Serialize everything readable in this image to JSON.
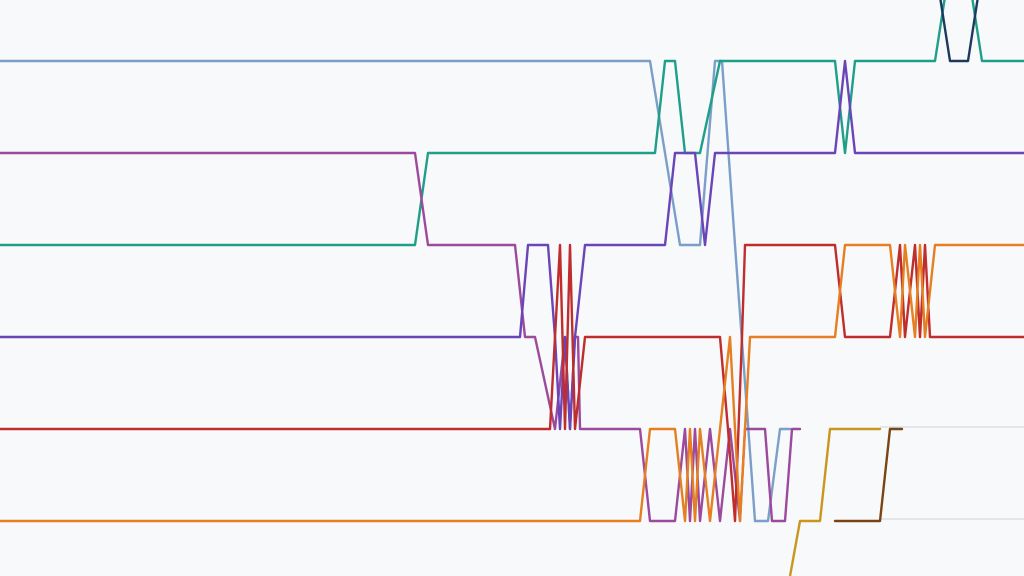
{
  "chart_data": {
    "type": "line",
    "title": "",
    "xlabel": "",
    "ylabel": "",
    "xlim": [
      0,
      1024
    ],
    "ylim": [
      0,
      6
    ],
    "y_orientation": "rank 0 at top",
    "grid": false,
    "legend": "none",
    "series": [
      {
        "color": "#7b9fc9",
        "points": [
          [
            0,
            0.7
          ],
          [
            650,
            0.7
          ],
          [
            680,
            2.7
          ],
          [
            700,
            2.7
          ],
          [
            715,
            0.7
          ],
          [
            722,
            0.7
          ],
          [
            735,
            2.7
          ],
          [
            755,
            5.7
          ],
          [
            768,
            5.7
          ],
          [
            780,
            4.7
          ],
          [
            790,
            4.7
          ]
        ]
      },
      {
        "color": "#1f9e89",
        "points": [
          [
            0,
            2.7
          ],
          [
            415,
            2.7
          ],
          [
            428,
            1.7
          ],
          [
            655,
            1.7
          ],
          [
            665,
            0.7
          ],
          [
            675,
            0.7
          ],
          [
            685,
            1.7
          ],
          [
            700,
            1.7
          ],
          [
            720,
            0.7
          ],
          [
            835,
            0.7
          ],
          [
            845,
            1.7
          ],
          [
            855,
            0.7
          ],
          [
            935,
            0.7
          ],
          [
            945,
            0
          ],
          [
            972,
            0
          ],
          [
            982,
            0.7
          ],
          [
            1024,
            0.7
          ]
        ]
      },
      {
        "color": "#9c4a9c",
        "points": [
          [
            0,
            1.7
          ],
          [
            415,
            1.7
          ],
          [
            428,
            2.7
          ],
          [
            515,
            2.7
          ],
          [
            525,
            3.7
          ],
          [
            535,
            3.7
          ],
          [
            555,
            4.7
          ],
          [
            565,
            3.7
          ],
          [
            570,
            4.7
          ],
          [
            575,
            3.7
          ],
          [
            578,
            3.7
          ],
          [
            580,
            4.7
          ],
          [
            640,
            4.7
          ],
          [
            650,
            5.7
          ],
          [
            675,
            5.7
          ],
          [
            685,
            4.7
          ],
          [
            690,
            5.7
          ],
          [
            695,
            4.7
          ],
          [
            700,
            5.7
          ],
          [
            710,
            4.7
          ],
          [
            720,
            5.7
          ],
          [
            730,
            4.7
          ],
          [
            740,
            5.7
          ],
          [
            745,
            4.7
          ],
          [
            765,
            4.7
          ],
          [
            772,
            5.7
          ],
          [
            785,
            5.7
          ],
          [
            792,
            4.7
          ],
          [
            800,
            4.7
          ]
        ]
      },
      {
        "color": "#6a45b8",
        "points": [
          [
            0,
            3.7
          ],
          [
            520,
            3.7
          ],
          [
            528,
            2.7
          ],
          [
            548,
            2.7
          ],
          [
            555,
            3.7
          ],
          [
            560,
            4.7
          ],
          [
            565,
            3.7
          ],
          [
            570,
            4.7
          ],
          [
            575,
            3.7
          ],
          [
            585,
            2.7
          ],
          [
            665,
            2.7
          ],
          [
            675,
            1.7
          ],
          [
            695,
            1.7
          ],
          [
            705,
            2.7
          ],
          [
            715,
            1.7
          ],
          [
            835,
            1.7
          ],
          [
            845,
            0.7
          ],
          [
            855,
            1.7
          ],
          [
            1024,
            1.7
          ]
        ]
      },
      {
        "color": "#c02d2d",
        "points": [
          [
            0,
            4.7
          ],
          [
            550,
            4.7
          ],
          [
            560,
            2.7
          ],
          [
            565,
            4.7
          ],
          [
            570,
            2.7
          ],
          [
            575,
            4.7
          ],
          [
            585,
            3.7
          ],
          [
            720,
            3.7
          ],
          [
            728,
            4.7
          ],
          [
            735,
            5.7
          ],
          [
            742,
            3.7
          ],
          [
            745,
            2.7
          ],
          [
            835,
            2.7
          ],
          [
            845,
            3.7
          ],
          [
            890,
            3.7
          ],
          [
            900,
            2.7
          ],
          [
            905,
            3.7
          ],
          [
            915,
            2.7
          ],
          [
            920,
            3.7
          ],
          [
            925,
            2.7
          ],
          [
            930,
            3.7
          ],
          [
            1024,
            3.7
          ]
        ]
      },
      {
        "color": "#e67e22",
        "points": [
          [
            0,
            5.7
          ],
          [
            640,
            5.7
          ],
          [
            650,
            4.7
          ],
          [
            675,
            4.7
          ],
          [
            685,
            5.7
          ],
          [
            690,
            4.7
          ],
          [
            695,
            5.7
          ],
          [
            700,
            4.7
          ],
          [
            710,
            5.7
          ],
          [
            720,
            4.7
          ],
          [
            730,
            3.7
          ],
          [
            735,
            4.7
          ],
          [
            740,
            5.7
          ],
          [
            745,
            4.7
          ],
          [
            750,
            3.7
          ],
          [
            835,
            3.7
          ],
          [
            845,
            2.7
          ],
          [
            890,
            2.7
          ],
          [
            900,
            3.7
          ],
          [
            905,
            2.7
          ],
          [
            915,
            3.7
          ],
          [
            920,
            2.7
          ],
          [
            925,
            3.7
          ],
          [
            935,
            2.7
          ],
          [
            1024,
            2.7
          ]
        ]
      },
      {
        "color": "#c9971f",
        "points": [
          [
            790,
            6.3
          ],
          [
            800,
            5.7
          ],
          [
            820,
            5.7
          ],
          [
            830,
            4.7
          ],
          [
            880,
            4.7
          ]
        ]
      },
      {
        "color": "#7a4515",
        "points": [
          [
            835,
            5.7
          ],
          [
            880,
            5.7
          ],
          [
            890,
            4.7
          ],
          [
            902,
            4.7
          ]
        ]
      },
      {
        "color": "#1c3a60",
        "points": [
          [
            940,
            0
          ],
          [
            950,
            0.7
          ],
          [
            968,
            0.7
          ],
          [
            978,
            0
          ]
        ]
      }
    ]
  }
}
